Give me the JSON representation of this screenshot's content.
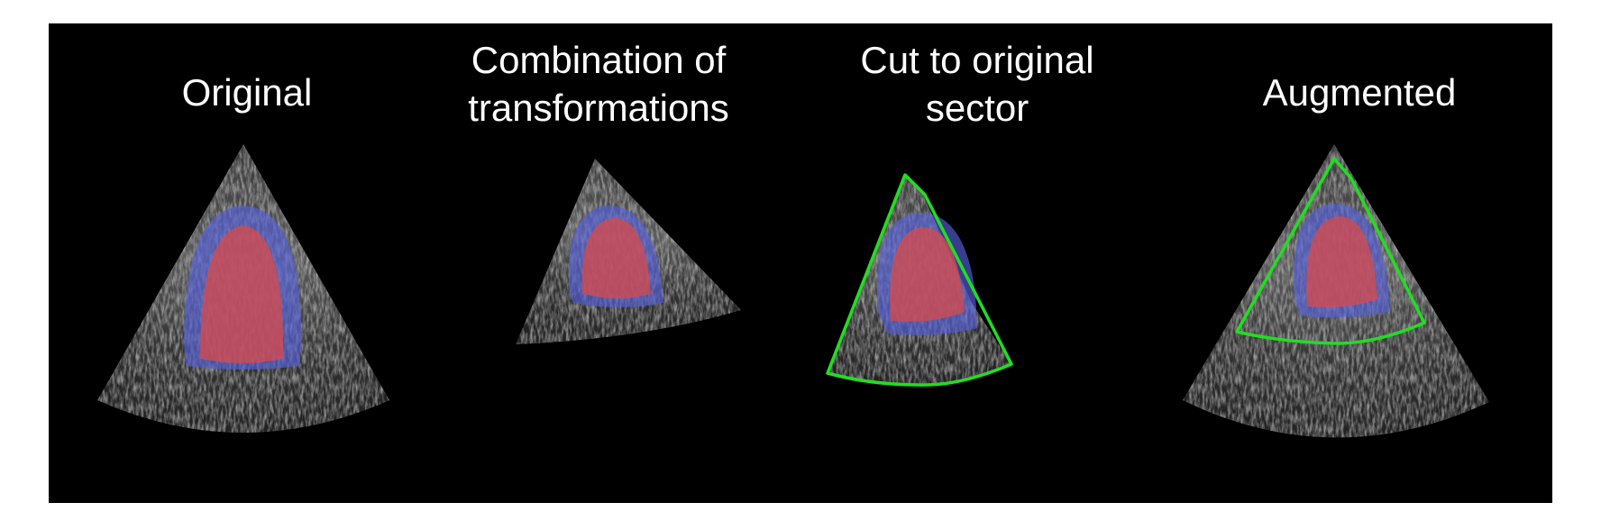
{
  "panels": [
    {
      "title_lines": [
        "Original"
      ]
    },
    {
      "title_lines": [
        "Combination of",
        "transformations"
      ]
    },
    {
      "title_lines": [
        "Cut to original",
        "sector"
      ]
    },
    {
      "title_lines": [
        "Augmented"
      ]
    }
  ],
  "colors": {
    "background": "#000000",
    "myocardium": "#5560d8",
    "cavity": "#d94a4a",
    "sector_outline": "#22dd22"
  }
}
